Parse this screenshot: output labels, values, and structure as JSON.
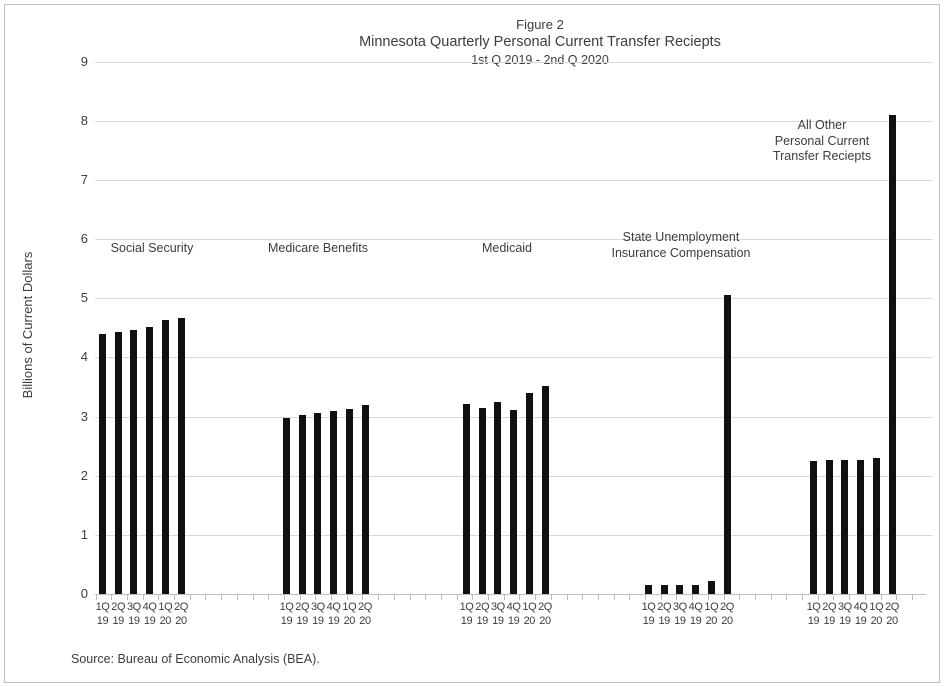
{
  "figure": {
    "source": "Source: Bureau of Economic Analysis (BEA)."
  },
  "chart_data": {
    "type": "bar",
    "title_prefix": "Figure 2",
    "title": "Minnesota Quarterly Personal Current Transfer Reciepts",
    "subtitle": "1st Q 2019 - 2nd Q 2020",
    "ylabel": "Billions of Current Dollars",
    "ylim": [
      0,
      9
    ],
    "yticks": [
      0,
      1,
      2,
      3,
      4,
      5,
      6,
      7,
      8,
      9
    ],
    "grid": true,
    "legend": false,
    "bar_color": "#111111",
    "gridline_color": "#d9d9d9",
    "axis_color": "#bfbfbf",
    "categories": [
      "1Q 19",
      "2Q 19",
      "3Q 19",
      "4Q 19",
      "1Q 20",
      "2Q 20"
    ],
    "category_line1": [
      "1Q",
      "2Q",
      "3Q",
      "4Q",
      "1Q",
      "2Q"
    ],
    "category_line2": [
      "19",
      "19",
      "19",
      "19",
      "20",
      "20"
    ],
    "series": [
      {
        "name": "Social Security",
        "label_lines": [
          "Social Security"
        ],
        "values": [
          4.39,
          4.43,
          4.47,
          4.52,
          4.63,
          4.67
        ]
      },
      {
        "name": "Medicare Benefits",
        "label_lines": [
          "Medicare Benefits"
        ],
        "values": [
          2.97,
          3.02,
          3.06,
          3.09,
          3.13,
          3.2
        ]
      },
      {
        "name": "Medicaid",
        "label_lines": [
          "Medicaid"
        ],
        "values": [
          3.22,
          3.15,
          3.25,
          3.11,
          3.39,
          3.52
        ]
      },
      {
        "name": "State Unemployment Insurance Compensation",
        "label_lines": [
          "State Unemployment",
          "Insurance Compensation"
        ],
        "values": [
          0.15,
          0.16,
          0.16,
          0.15,
          0.22,
          5.05
        ]
      },
      {
        "name": "All Other Personal Current Transfer Reciepts",
        "label_lines": [
          "All Other",
          "Personal Current",
          "Transfer Reciepts"
        ],
        "values": [
          2.25,
          2.26,
          2.27,
          2.26,
          2.3,
          8.09
        ]
      }
    ]
  }
}
